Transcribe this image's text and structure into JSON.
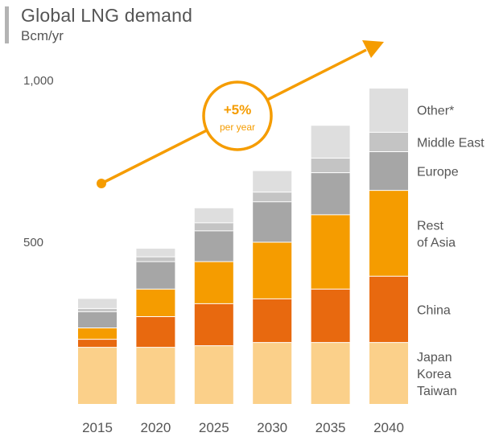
{
  "header": {
    "title": "Global LNG demand",
    "unit": "Bcm/yr"
  },
  "chart_data": {
    "type": "bar",
    "stacked": true,
    "categories": [
      "2015",
      "2020",
      "2025",
      "2030",
      "2035",
      "2040"
    ],
    "y_ticks": [
      {
        "value": 500,
        "label": "500"
      },
      {
        "value": 1000,
        "label": "1,000"
      }
    ],
    "ylim": [
      0,
      1000
    ],
    "grid": false,
    "legend_placement": "right",
    "series": [
      {
        "name": "Japan Korea Taiwan",
        "label_lines": [
          "Japan",
          "Korea",
          "Taiwan"
        ],
        "color": "#fbd08a",
        "values": [
          175,
          175,
          180,
          190,
          190,
          190
        ]
      },
      {
        "name": "China",
        "label_lines": [
          "China"
        ],
        "color": "#e8690f",
        "values": [
          25,
          95,
          130,
          135,
          165,
          205
        ]
      },
      {
        "name": "Rest of Asia",
        "label_lines": [
          "Rest",
          "of Asia"
        ],
        "color": "#f59c00",
        "values": [
          35,
          85,
          130,
          175,
          230,
          265
        ]
      },
      {
        "name": "Europe",
        "label_lines": [
          "Europe"
        ],
        "color": "#a6a6a6",
        "values": [
          50,
          85,
          95,
          125,
          130,
          120
        ]
      },
      {
        "name": "Middle East",
        "label_lines": [
          "Middle East"
        ],
        "color": "#c4c4c4",
        "values": [
          10,
          15,
          25,
          30,
          45,
          60
        ]
      },
      {
        "name": "Other*",
        "label_lines": [
          "Other*"
        ],
        "color": "#dedede",
        "values": [
          30,
          25,
          45,
          65,
          100,
          135
        ]
      }
    ],
    "annotation": {
      "rate": "+5%",
      "rate_sub": "per year",
      "color": "#f59c00"
    }
  }
}
